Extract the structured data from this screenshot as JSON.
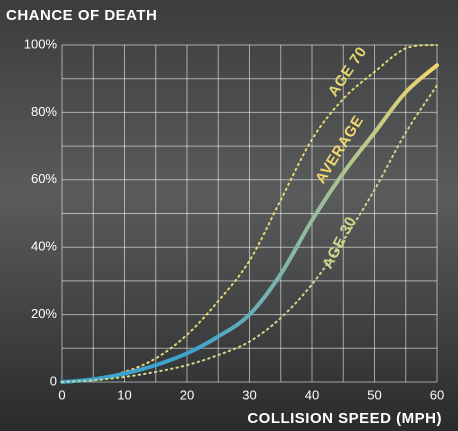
{
  "chart_data": {
    "type": "line",
    "title": "CHANCE OF DEATH",
    "x_label": "COLLISION SPEED (MPH)",
    "x": [
      0,
      5,
      10,
      15,
      20,
      25,
      30,
      35,
      40,
      45,
      50,
      55,
      60
    ],
    "series": [
      {
        "name": "AGE 70",
        "color": "#e6d870",
        "style": "dotted",
        "values": [
          0,
          1,
          3,
          7,
          14,
          24,
          36,
          54,
          72,
          84,
          92,
          99,
          100
        ]
      },
      {
        "name": "AVERAGE",
        "color": "#f2d86a",
        "gradient_start": "#3da2cd",
        "style": "solid",
        "values": [
          0,
          0.8,
          2.5,
          5,
          8.5,
          13.5,
          20,
          32,
          48,
          62,
          74,
          86,
          94
        ]
      },
      {
        "name": "AGE 30",
        "color": "#c9d88a",
        "style": "dotted",
        "values": [
          0,
          0.5,
          1.5,
          3,
          5,
          8,
          12,
          19,
          29,
          42,
          57,
          74,
          88
        ]
      }
    ],
    "xlim": [
      0,
      60
    ],
    "xticks": [
      0,
      10,
      20,
      30,
      40,
      50,
      60
    ],
    "xminor": [
      5,
      15,
      25,
      35,
      45,
      55
    ],
    "ylim": [
      0,
      100
    ],
    "yticks": [
      {
        "value": 0,
        "label": "0"
      },
      {
        "value": 20,
        "label": "20%"
      },
      {
        "value": 40,
        "label": "40%"
      },
      {
        "value": 60,
        "label": "60%"
      },
      {
        "value": 80,
        "label": "80%"
      },
      {
        "value": 100,
        "label": "100%"
      }
    ],
    "yminor": [
      10,
      30,
      50,
      70,
      90
    ],
    "grid": true
  }
}
